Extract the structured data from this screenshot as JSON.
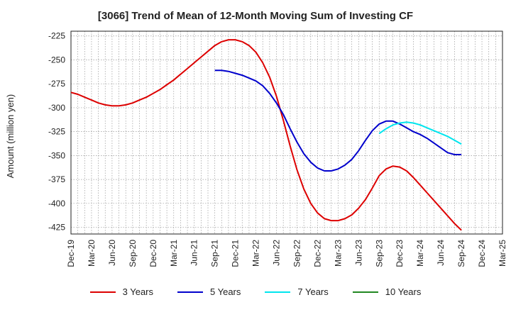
{
  "chart_data": {
    "type": "line",
    "title": "[3066]  Trend of Mean of 12-Month Moving Sum of Investing CF",
    "xlabel": "",
    "ylabel": "Amount (million yen)",
    "ylim": [
      -432,
      -220
    ],
    "yticks": [
      -225,
      -250,
      -275,
      -300,
      -325,
      -350,
      -375,
      -400,
      -425
    ],
    "x_categories": [
      "Dec-19",
      "Mar-20",
      "Jun-20",
      "Sep-20",
      "Dec-20",
      "Mar-21",
      "Jun-21",
      "Sep-21",
      "Dec-21",
      "Mar-22",
      "Jun-22",
      "Sep-22",
      "Dec-22",
      "Mar-23",
      "Jun-23",
      "Sep-23",
      "Dec-23",
      "Mar-24",
      "Jun-24",
      "Sep-24",
      "Dec-24",
      "Mar-25"
    ],
    "x_unit": "month_index_from_Dec-19",
    "series": [
      {
        "name": "3 Years",
        "color": "#dd0000",
        "x": [
          0,
          1,
          2,
          3,
          4,
          5,
          6,
          7,
          8,
          9,
          10,
          11,
          12,
          13,
          14,
          15,
          16,
          17,
          18,
          19,
          20,
          21,
          22,
          23,
          24,
          25,
          26,
          27,
          28,
          29,
          30,
          31,
          32,
          33,
          34,
          35,
          36,
          37,
          38,
          39,
          40,
          41,
          42,
          43,
          44,
          45,
          46,
          47,
          48,
          49,
          50,
          51,
          52,
          53,
          54,
          55,
          56,
          57
        ],
        "values": [
          -284,
          -286,
          -289,
          -292,
          -295,
          -297,
          -298,
          -298,
          -297,
          -295,
          -292,
          -289,
          -285,
          -281,
          -276,
          -271,
          -265,
          -259,
          -253,
          -247,
          -241,
          -235,
          -231,
          -229,
          -229,
          -231,
          -235,
          -242,
          -253,
          -268,
          -288,
          -313,
          -340,
          -365,
          -385,
          -400,
          -410,
          -416,
          -418,
          -418,
          -416,
          -412,
          -405,
          -396,
          -384,
          -371,
          -364,
          -361,
          -362,
          -366,
          -373,
          -381,
          -389,
          -397,
          -405,
          -413,
          -421,
          -428
        ]
      },
      {
        "name": "5 Years",
        "color": "#0000cc",
        "x": [
          21,
          22,
          23,
          24,
          25,
          26,
          27,
          28,
          29,
          30,
          31,
          32,
          33,
          34,
          35,
          36,
          37,
          38,
          39,
          40,
          41,
          42,
          43,
          44,
          45,
          46,
          47,
          48,
          49,
          50,
          51,
          52,
          53,
          54,
          55,
          56,
          57
        ],
        "values": [
          -261,
          -261,
          -262,
          -264,
          -266,
          -269,
          -272,
          -277,
          -285,
          -295,
          -307,
          -322,
          -336,
          -348,
          -357,
          -363,
          -366,
          -366,
          -364,
          -360,
          -354,
          -345,
          -334,
          -324,
          -317,
          -314,
          -314,
          -317,
          -321,
          -325,
          -328,
          -332,
          -337,
          -342,
          -347,
          -349,
          -349
        ]
      },
      {
        "name": "7 Years",
        "color": "#00e5ee",
        "x": [
          45,
          46,
          47,
          48,
          49,
          50,
          51,
          52,
          53,
          54,
          55,
          56,
          57
        ],
        "values": [
          -327,
          -322,
          -318,
          -316,
          -315,
          -316,
          -318,
          -321,
          -324,
          -327,
          -330,
          -334,
          -338
        ]
      },
      {
        "name": "10 Years",
        "color": "#228822",
        "x": [],
        "values": []
      }
    ],
    "grid": true,
    "legend_position": "bottom"
  }
}
